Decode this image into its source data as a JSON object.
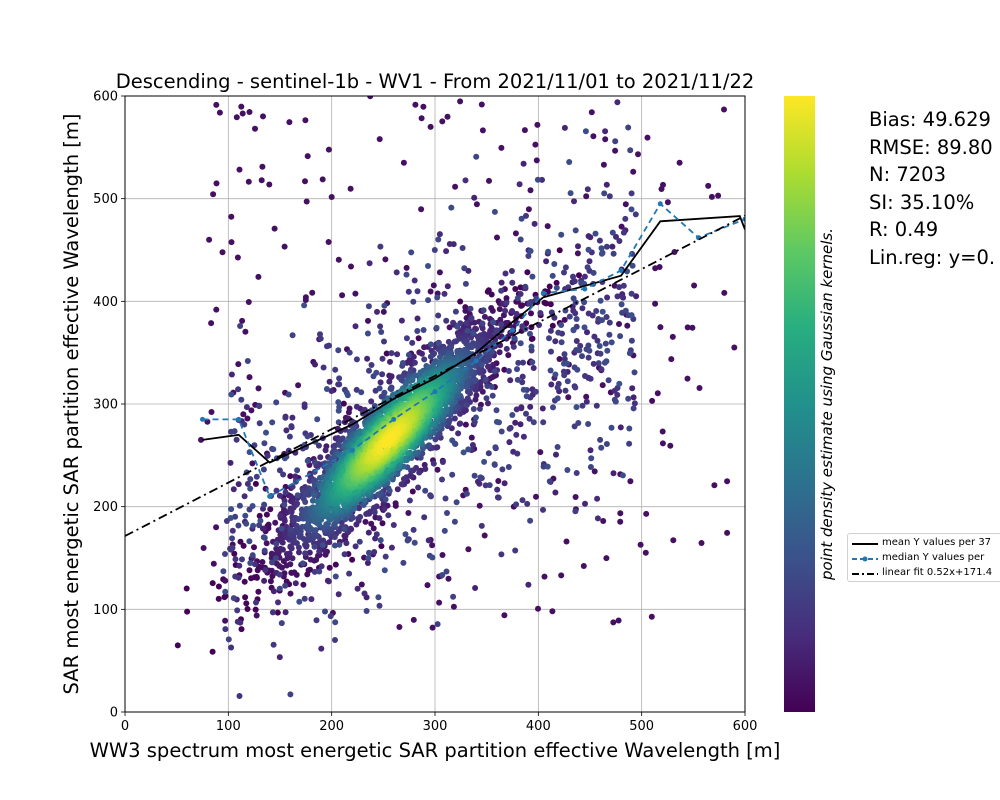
{
  "chart_data": {
    "type": "scatter",
    "title": "Descending - sentinel-1b - WV1 - From 2021/11/01 to 2021/11/22",
    "xlabel": "WW3 spectrum most energetic SAR partition effective Wavelength [m]",
    "ylabel": "SAR most energetic SAR partition effective Wavelength [m]",
    "xlim": [
      0,
      600
    ],
    "ylim": [
      0,
      600
    ],
    "xticks": [
      "0",
      "100",
      "200",
      "300",
      "400",
      "500",
      "600"
    ],
    "yticks": [
      "0",
      "100",
      "200",
      "300",
      "400",
      "500",
      "600"
    ],
    "grid": true,
    "colorbar_label": "point density estimate using Gaussian kernels.",
    "colormap": "viridis",
    "density_center": [
      255,
      265
    ],
    "point_count": 7203,
    "series": [
      {
        "name": "mean Y values per 37",
        "style": "solid",
        "color": "#000000",
        "x": [
          75,
          110,
          140,
          220,
          260,
          300,
          340,
          375,
          405,
          445,
          480,
          518,
          595,
          600
        ],
        "y": [
          265,
          270,
          243,
          280,
          305,
          325,
          350,
          380,
          404,
          415,
          425,
          478,
          483,
          470
        ]
      },
      {
        "name": "median Y values per",
        "style": "dashed-marker",
        "color": "#1f77b4",
        "x": [
          75,
          110,
          140,
          220,
          260,
          300,
          340,
          375,
          405,
          445,
          480,
          518,
          555,
          600
        ],
        "y": [
          285,
          285,
          210,
          255,
          285,
          312,
          342,
          372,
          408,
          412,
          430,
          495,
          462,
          480
        ]
      },
      {
        "name": "linear fit 0.52x+171.4",
        "style": "dashdot",
        "color": "#000000",
        "x": [
          0,
          600
        ],
        "y": [
          171.4,
          483.4
        ]
      }
    ]
  },
  "stats": {
    "bias": "Bias: 49.629",
    "rmse": "RMSE: 89.80",
    "n": "N: 7203",
    "si": "SI: 35.10%",
    "r": "R: 0.49",
    "linreg": "Lin.reg: y=0."
  },
  "legend": {
    "mean_label": "mean Y values per 37",
    "median_label": "median Y values per",
    "fit_label": "linear fit 0.52x+171.4"
  }
}
